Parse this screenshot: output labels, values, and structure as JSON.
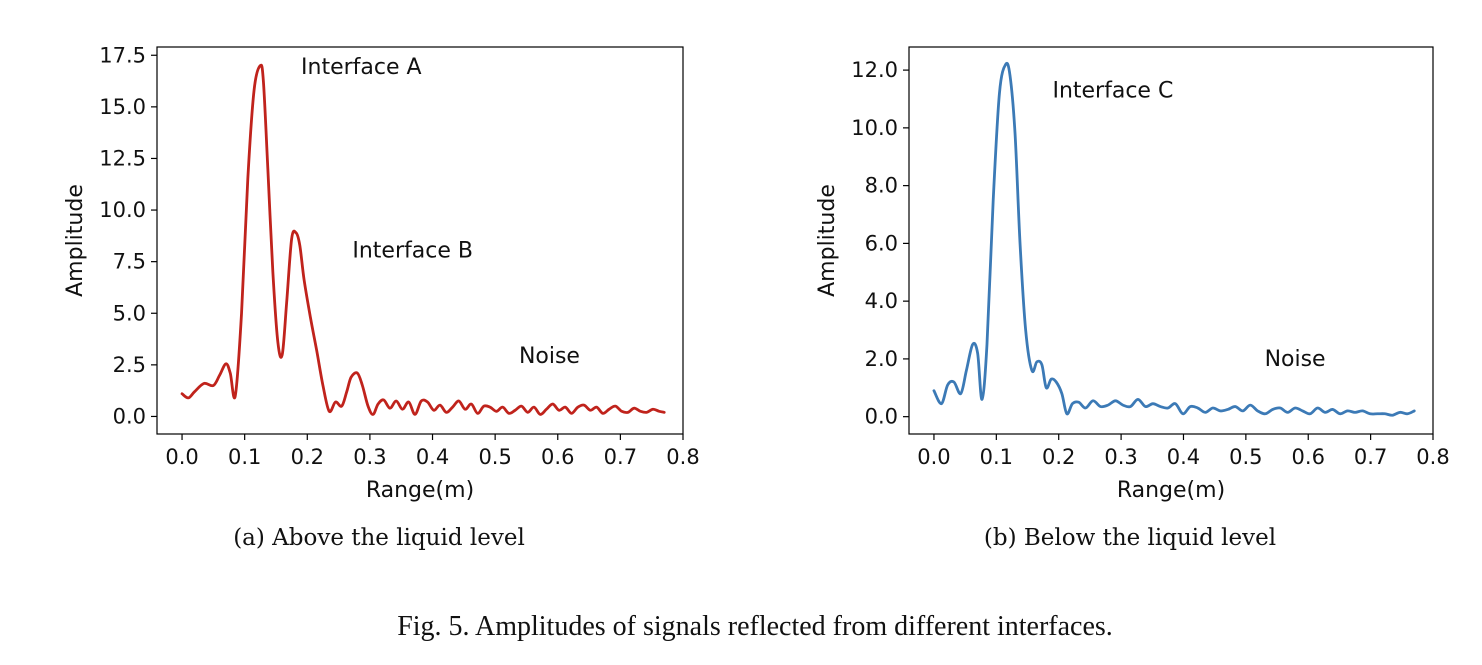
{
  "figure_caption": "Fig. 5.  Amplitudes of signals reflected from different interfaces.",
  "chart_data": [
    {
      "type": "line",
      "panel": "a",
      "caption": "(a)  Above the liquid level",
      "xlabel": "Range(m)",
      "ylabel": "Amplitude",
      "xlim": [
        -0.04,
        0.8
      ],
      "ylim": [
        -0.85,
        17.9
      ],
      "xticks": [
        0.0,
        0.1,
        0.2,
        0.3,
        0.4,
        0.5,
        0.6,
        0.7,
        0.8
      ],
      "xtick_labels": [
        "0.0",
        "0.1",
        "0.2",
        "0.3",
        "0.4",
        "0.5",
        "0.6",
        "0.7",
        "0.8"
      ],
      "yticks": [
        0.0,
        2.5,
        5.0,
        7.5,
        10.0,
        12.5,
        15.0,
        17.5
      ],
      "ytick_labels": [
        "0.0",
        "2.5",
        "5.0",
        "7.5",
        "10.0",
        "12.5",
        "15.0",
        "17.5"
      ],
      "grid": false,
      "color": "#c0231c",
      "annotations": [
        {
          "text": "Interface A",
          "x": 0.19,
          "y": 16.6
        },
        {
          "text": "Interface B",
          "x": 0.272,
          "y": 7.7
        },
        {
          "text": "Noise",
          "x": 0.538,
          "y": 2.6
        }
      ],
      "series": [
        {
          "name": "Above the liquid level",
          "x": [
            0.0,
            0.01,
            0.02,
            0.035,
            0.05,
            0.06,
            0.07,
            0.077,
            0.085,
            0.095,
            0.105,
            0.115,
            0.125,
            0.13,
            0.137,
            0.145,
            0.153,
            0.16,
            0.167,
            0.175,
            0.182,
            0.188,
            0.195,
            0.205,
            0.215,
            0.225,
            0.235,
            0.245,
            0.255,
            0.263,
            0.27,
            0.28,
            0.288,
            0.297,
            0.305,
            0.313,
            0.322,
            0.332,
            0.342,
            0.352,
            0.362,
            0.372,
            0.382,
            0.392,
            0.402,
            0.412,
            0.422,
            0.432,
            0.442,
            0.452,
            0.462,
            0.472,
            0.482,
            0.492,
            0.502,
            0.512,
            0.522,
            0.532,
            0.542,
            0.552,
            0.562,
            0.572,
            0.582,
            0.592,
            0.602,
            0.612,
            0.622,
            0.632,
            0.642,
            0.652,
            0.662,
            0.672,
            0.682,
            0.692,
            0.702,
            0.712,
            0.722,
            0.732,
            0.742,
            0.752,
            0.762,
            0.77
          ],
          "y": [
            1.1,
            0.9,
            1.2,
            1.6,
            1.5,
            2.0,
            2.55,
            2.1,
            1.0,
            5.0,
            11.5,
            15.8,
            17.0,
            16.2,
            12.0,
            7.0,
            3.6,
            3.0,
            5.5,
            8.6,
            8.9,
            8.3,
            6.6,
            4.8,
            3.2,
            1.5,
            0.25,
            0.7,
            0.5,
            1.2,
            1.9,
            2.1,
            1.5,
            0.5,
            0.1,
            0.6,
            0.8,
            0.4,
            0.75,
            0.35,
            0.7,
            0.1,
            0.75,
            0.7,
            0.3,
            0.55,
            0.2,
            0.45,
            0.75,
            0.35,
            0.6,
            0.15,
            0.5,
            0.45,
            0.25,
            0.45,
            0.15,
            0.3,
            0.5,
            0.2,
            0.45,
            0.1,
            0.35,
            0.6,
            0.3,
            0.45,
            0.15,
            0.45,
            0.55,
            0.3,
            0.45,
            0.15,
            0.35,
            0.5,
            0.25,
            0.2,
            0.4,
            0.25,
            0.2,
            0.35,
            0.25,
            0.2
          ]
        }
      ]
    },
    {
      "type": "line",
      "panel": "b",
      "caption": "(b)  Below the liquid level",
      "xlabel": "Range(m)",
      "ylabel": "Amplitude",
      "xlim": [
        -0.04,
        0.8
      ],
      "ylim": [
        -0.6,
        12.8
      ],
      "xticks": [
        0.0,
        0.1,
        0.2,
        0.3,
        0.4,
        0.5,
        0.6,
        0.7,
        0.8
      ],
      "xtick_labels": [
        "0.0",
        "0.1",
        "0.2",
        "0.3",
        "0.4",
        "0.5",
        "0.6",
        "0.7",
        "0.8"
      ],
      "yticks": [
        0.0,
        2.0,
        4.0,
        6.0,
        8.0,
        10.0,
        12.0
      ],
      "ytick_labels": [
        "0.0",
        "2.0",
        "4.0",
        "6.0",
        "8.0",
        "10.0",
        "12.0"
      ],
      "grid": false,
      "color": "#3c7ab6",
      "annotations": [
        {
          "text": "Interface C",
          "x": 0.19,
          "y": 11.05
        },
        {
          "text": "Noise",
          "x": 0.53,
          "y": 1.75
        }
      ],
      "series": [
        {
          "name": "Below the liquid level",
          "x": [
            0.0,
            0.012,
            0.022,
            0.032,
            0.043,
            0.052,
            0.062,
            0.07,
            0.077,
            0.085,
            0.095,
            0.105,
            0.115,
            0.122,
            0.13,
            0.138,
            0.147,
            0.157,
            0.165,
            0.173,
            0.18,
            0.188,
            0.196,
            0.205,
            0.213,
            0.222,
            0.232,
            0.243,
            0.255,
            0.267,
            0.279,
            0.291,
            0.303,
            0.315,
            0.327,
            0.339,
            0.351,
            0.363,
            0.375,
            0.387,
            0.399,
            0.411,
            0.423,
            0.435,
            0.447,
            0.459,
            0.471,
            0.483,
            0.495,
            0.507,
            0.519,
            0.531,
            0.543,
            0.555,
            0.567,
            0.579,
            0.591,
            0.603,
            0.615,
            0.627,
            0.639,
            0.651,
            0.663,
            0.675,
            0.687,
            0.699,
            0.711,
            0.723,
            0.735,
            0.747,
            0.759,
            0.77
          ],
          "y": [
            0.9,
            0.45,
            1.1,
            1.2,
            0.8,
            1.6,
            2.5,
            2.2,
            0.6,
            2.5,
            7.5,
            11.2,
            12.2,
            11.8,
            9.8,
            6.0,
            3.0,
            1.6,
            1.9,
            1.8,
            1.0,
            1.3,
            1.2,
            0.8,
            0.1,
            0.45,
            0.5,
            0.3,
            0.55,
            0.35,
            0.4,
            0.55,
            0.4,
            0.35,
            0.6,
            0.35,
            0.45,
            0.35,
            0.3,
            0.45,
            0.1,
            0.35,
            0.3,
            0.15,
            0.3,
            0.2,
            0.25,
            0.35,
            0.2,
            0.4,
            0.2,
            0.1,
            0.25,
            0.3,
            0.15,
            0.3,
            0.2,
            0.1,
            0.3,
            0.15,
            0.25,
            0.1,
            0.2,
            0.15,
            0.2,
            0.1,
            0.1,
            0.1,
            0.05,
            0.15,
            0.1,
            0.2
          ]
        }
      ]
    }
  ]
}
